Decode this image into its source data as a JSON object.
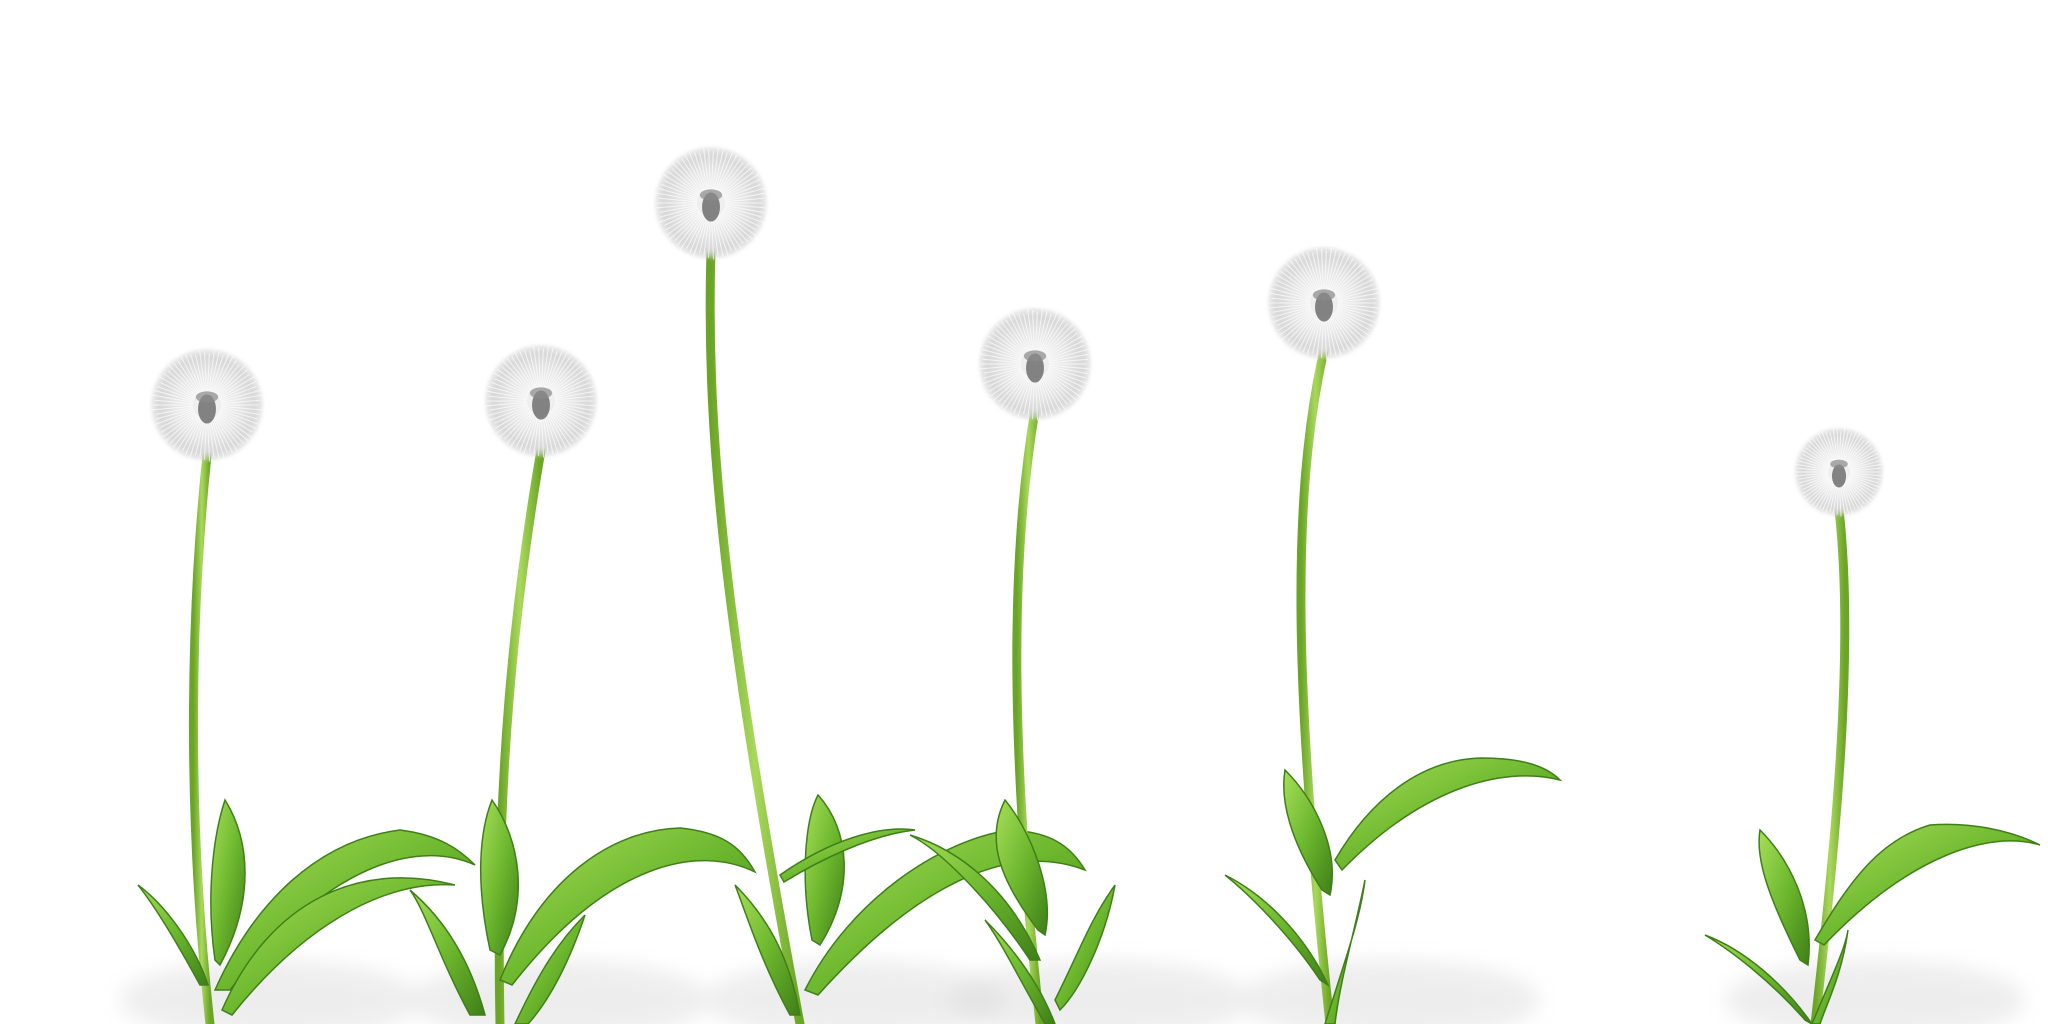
{
  "scene": {
    "subject": "dandelion-seed-heads",
    "plant_count": 6,
    "colors": {
      "background": "#ffffff",
      "stem": "#8cc63a",
      "stem_dark": "#5f9a22",
      "leaf_light": "#9ad64a",
      "leaf_mid": "#6bb82c",
      "leaf_dark": "#3f7f18",
      "seed_head": "#e6e6e6",
      "seed_head_edge": "#cfcfcf",
      "seed_center": "#6e6e6e",
      "shadow": "#d9d9d9"
    }
  }
}
